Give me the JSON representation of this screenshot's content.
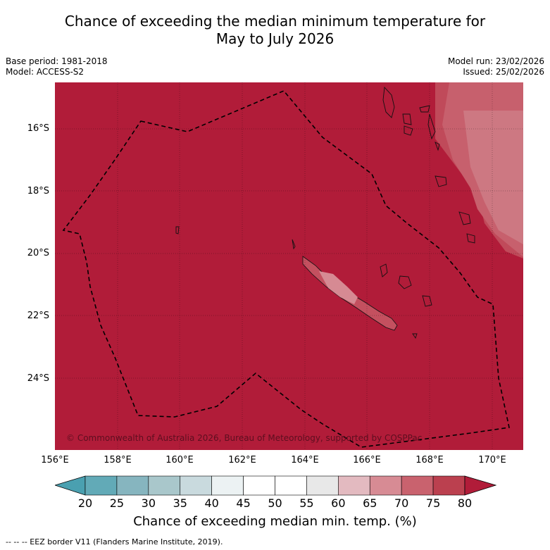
{
  "title_line1": "Chance of exceeding the median minimum temperature for",
  "title_line2": "May to July 2026",
  "meta": {
    "base_period": "Base period: 1981-2018",
    "model": "Model: ACCESS-S2",
    "model_run": "Model run: 23/02/2026",
    "issued": "Issued: 25/02/2026"
  },
  "map": {
    "copyright": "© Commonwealth of Australia 2026, Bureau of Meteorology, supported by COSPPac",
    "lat_labels": [
      "16°S",
      "18°S",
      "20°S",
      "22°S",
      "24°S"
    ],
    "lon_labels": [
      "156°E",
      "158°E",
      "160°E",
      "162°E",
      "164°E",
      "166°E",
      "168°E",
      "170°E"
    ],
    "background_color": "#b11c39"
  },
  "colorbar": {
    "ticks": [
      "20",
      "25",
      "30",
      "35",
      "40",
      "45",
      "50",
      "55",
      "60",
      "65",
      "70",
      "75",
      "80"
    ],
    "colors": [
      "#62aab7",
      "#86b5bf",
      "#a9c7cb",
      "#c9dade",
      "#ecf2f3",
      "#ffffff",
      "#ffffff",
      "#e8e8e8",
      "#e3bac0",
      "#d78b94",
      "#c9626e",
      "#bb404f"
    ],
    "low_arrow_color": "#4aa0b0",
    "high_arrow_color": "#b11c39",
    "label": "Chance of exceeding median min. temp. (%)"
  },
  "footer": "--  --  -- EEZ border V11 (Flanders Marine Institute, 2019)."
}
